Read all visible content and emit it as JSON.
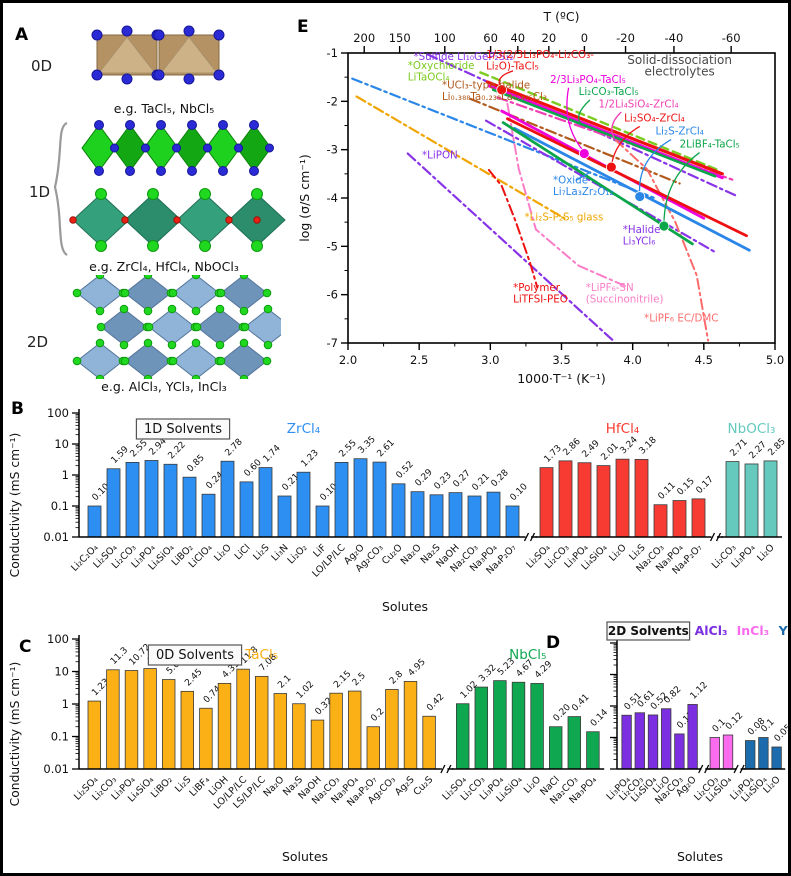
{
  "letters": {
    "a": "A",
    "b": "B",
    "c": "C",
    "d": "D",
    "e": "E"
  },
  "figure": {
    "panel_a": {
      "groups": [
        {
          "dim": "0D",
          "caption": "e.g. TaCl₅, NbCl₅"
        },
        {
          "dim": "1D",
          "caption": "e.g. ZrCl₄, HfCl₄, NbOCl₃"
        },
        {
          "dim": "2D",
          "caption": "e.g. AlCl₃, YCl₃, InCl₃"
        }
      ]
    }
  },
  "chart_data": [
    {
      "type": "line",
      "panel": "E",
      "top_axis_label": "T (ºC)",
      "xlabel": "1000·T⁻¹ (K⁻¹)",
      "ylabel": "log (σ/S cm⁻¹)",
      "xlim": [
        2.0,
        5.0
      ],
      "ylim": [
        -7,
        -1
      ],
      "x_ticks": [
        "2.0",
        "2.5",
        "3.0",
        "3.5",
        "4.0",
        "4.5",
        "5.0"
      ],
      "y_ticks": [
        "-1",
        "-2",
        "-3",
        "-4",
        "-5",
        "-6",
        "-7"
      ],
      "top_ticks": [
        [
          "200",
          2.114
        ],
        [
          "150",
          2.363
        ],
        [
          "100",
          2.68
        ],
        [
          "60",
          3.002
        ],
        [
          "40",
          3.193
        ],
        [
          "20",
          3.411
        ],
        [
          "0",
          3.661
        ],
        [
          "-20",
          3.95
        ],
        [
          "-40",
          4.29
        ],
        [
          "-60",
          4.692
        ]
      ],
      "series": [
        {
          "name": "*Sulfide Li₁₀GeP₂S₁₂",
          "color": "#8833E8",
          "style": "dashdot",
          "width": 2.2,
          "points": [
            [
              2.56,
              -1.03
            ],
            [
              4.74,
              -3.97
            ]
          ]
        },
        {
          "name": "*Oxychloride LiTaOCl₄",
          "color": "#7CCB1F",
          "style": "dash",
          "width": 2.4,
          "points": [
            [
              2.93,
              -1.4
            ],
            [
              4.6,
              -3.42
            ]
          ]
        },
        {
          "name": "*UCl₃-type halide Li₀.₃₈₈Ta₀.₂₃₈La₀.₄₇₅Cl₃",
          "color": "#B15A1C",
          "style": "dashdot",
          "width": 2.2,
          "points": [
            [
              2.86,
              -1.95
            ],
            [
              4.33,
              -3.7
            ]
          ]
        },
        {
          "name": "*Oxide Li₇La₃Zr₂O₁₂",
          "color": "#2A87E8",
          "style": "dashdot",
          "width": 2.2,
          "points": [
            [
              2.03,
              -1.53
            ],
            [
              4.17,
              -4.02
            ]
          ]
        },
        {
          "name": "*Li₂S-P₂S₅ glass",
          "color": "#F0A500",
          "style": "dashdot",
          "width": 2.2,
          "points": [
            [
              2.06,
              -1.9
            ],
            [
              3.52,
              -4.42
            ]
          ]
        },
        {
          "name": "*LiPON",
          "color": "#8833E8",
          "style": "dashdot",
          "width": 2.2,
          "points": [
            [
              2.42,
              -3.08
            ],
            [
              3.87,
              -6.97
            ]
          ]
        },
        {
          "name": "*Halide Li₃YCl₆",
          "color": "#8833E8",
          "style": "dashdot",
          "width": 2.2,
          "points": [
            [
              2.97,
              -2.4
            ],
            [
              4.58,
              -5.12
            ]
          ]
        },
        {
          "name": "*Polymer LiTFSI-PEO",
          "color": "#EE1111",
          "style": "dashdot",
          "width": 2.0,
          "points": [
            [
              2.99,
              -3.42
            ],
            [
              3.08,
              -3.75
            ],
            [
              3.18,
              -4.5
            ],
            [
              3.28,
              -5.35
            ],
            [
              3.33,
              -5.85
            ]
          ]
        },
        {
          "name": "*LiPF₆-SN (Succinonitrile)",
          "color": "#FB7DC8",
          "style": "dashdot",
          "width": 2.0,
          "points": [
            [
              3.12,
              -2.05
            ],
            [
              3.2,
              -3.4
            ],
            [
              3.32,
              -4.65
            ],
            [
              3.62,
              -5.4
            ],
            [
              3.97,
              -5.85
            ]
          ]
        },
        {
          "name": "*LiPF₆ EC/DMC",
          "color": "#FC6B6B",
          "style": "dashdot",
          "width": 2.0,
          "points": [
            [
              3.88,
              -2.8
            ],
            [
              4.1,
              -3.4
            ],
            [
              4.3,
              -4.5
            ],
            [
              4.45,
              -5.6
            ],
            [
              4.53,
              -6.95
            ]
          ]
        },
        {
          "name": "1/2Li₄SiO₄-ZrCl₄",
          "color": "#F03FB4",
          "style": "dashdot",
          "width": 2.2,
          "points": [
            [
              3.05,
              -1.92
            ],
            [
              4.7,
              -3.62
            ]
          ]
        },
        {
          "name": "1/3(2/3Li₃PO₄-Li₂CO₃-Li₂O)-TaCl₅",
          "color": "#EE1111",
          "style": "solid",
          "width": 3.2,
          "points": [
            [
              2.98,
              -1.6
            ],
            [
              4.63,
              -3.5
            ]
          ],
          "marker": [
            3.08,
            -1.76
          ]
        },
        {
          "name": "top-magenta-solid",
          "color": "#EE00DD",
          "style": "solid",
          "width": 3.0,
          "points": [
            [
              2.99,
              -1.68
            ],
            [
              4.63,
              -3.58
            ]
          ]
        },
        {
          "name": "Li₂CO₃-TaCl₅",
          "color": "#0CA64A",
          "style": "solid",
          "width": 2.6,
          "points": [
            [
              3.02,
              -1.76
            ],
            [
              4.58,
              -3.55
            ]
          ]
        },
        {
          "name": "2/3Li₃PO₄-TaCl₅",
          "color": "#EE00DD",
          "style": "solid",
          "width": 2.8,
          "points": [
            [
              3.08,
              -2.2
            ],
            [
              4.5,
              -4.42
            ]
          ],
          "marker": [
            3.66,
            -3.08
          ]
        },
        {
          "name": "Li₂SO₄-ZrCl₄",
          "color": "#EE1111",
          "style": "solid",
          "width": 2.8,
          "points": [
            [
              3.12,
              -2.36
            ],
            [
              4.8,
              -4.78
            ]
          ],
          "marker": [
            3.85,
            -3.36
          ]
        },
        {
          "name": "Li₂S-ZrCl₄",
          "color": "#2A87E8",
          "style": "solid",
          "width": 2.8,
          "points": [
            [
              3.17,
              -2.56
            ],
            [
              4.82,
              -5.08
            ]
          ],
          "marker": [
            4.05,
            -3.97
          ]
        },
        {
          "name": "2LiBF₄-TaCl₅",
          "color": "#0CA64A",
          "style": "solid",
          "width": 2.8,
          "points": [
            [
              3.09,
              -2.44
            ],
            [
              4.42,
              -4.95
            ]
          ],
          "marker": [
            4.22,
            -4.58
          ]
        }
      ],
      "connectors": [
        {
          "from": [
            3.16,
            -1.37
          ],
          "ctrl": [
            3.02,
            -1.5
          ],
          "to": [
            3.08,
            -1.73
          ],
          "color": "#EE1111"
        },
        {
          "from": [
            3.55,
            -1.72
          ],
          "ctrl": [
            3.5,
            -2.5
          ],
          "to": [
            3.66,
            -3.05
          ],
          "color": "#EE00DD"
        },
        {
          "from": [
            3.7,
            -1.97
          ],
          "ctrl": [
            3.58,
            -2.3
          ],
          "to": [
            3.64,
            -2.47
          ],
          "color": "#0CA64A"
        },
        {
          "from": [
            3.92,
            -2.22
          ],
          "ctrl": [
            3.82,
            -2.5
          ],
          "to": [
            3.87,
            -2.76
          ],
          "color": "#F03FB4"
        },
        {
          "from": [
            4.05,
            -2.52
          ],
          "ctrl": [
            3.88,
            -2.8
          ],
          "to": [
            3.85,
            -3.33
          ],
          "color": "#EE1111"
        },
        {
          "from": [
            4.27,
            -2.79
          ],
          "ctrl": [
            4.03,
            -3.2
          ],
          "to": [
            4.05,
            -3.94
          ],
          "color": "#2A87E8"
        },
        {
          "from": [
            4.47,
            -3.06
          ],
          "ctrl": [
            4.22,
            -3.6
          ],
          "to": [
            4.22,
            -4.55
          ],
          "color": "#0CA64A"
        },
        {
          "from": [
            3.6,
            -3.64
          ],
          "ctrl": [
            3.65,
            -3.55
          ],
          "to": [
            3.7,
            -3.47
          ],
          "color": "#2A87E8"
        }
      ],
      "labels": [
        {
          "text": "*Sulfide Li₁₀GeP₂S₁₂",
          "x": 2.46,
          "y": -1.14,
          "color": "#8833E8"
        },
        {
          "text": "*Oxychloride\nLiTaOCl₄",
          "x": 2.42,
          "y": -1.33,
          "color": "#7CCB1F"
        },
        {
          "text": "*UCl₃-type halide\nLi₀.₃₈₈Ta₀.₂₃₈La₀.₄₇₅Cl₃",
          "x": 2.66,
          "y": -1.73,
          "color": "#B15A1C"
        },
        {
          "text": "1/3(2/3Li₃PO₄-Li₂CO₃-\nLi₂O)-TaCl₅",
          "x": 2.97,
          "y": -1.1,
          "color": "#EE1111"
        },
        {
          "text": "2/3Li₃PO₄-TaCl₅",
          "x": 3.42,
          "y": -1.62,
          "color": "#EE00DD"
        },
        {
          "text": "Li₂CO₃-TaCl₅",
          "x": 3.62,
          "y": -1.87,
          "color": "#0CA64A"
        },
        {
          "text": "1/2Li₄SiO₄-ZrCl₄",
          "x": 3.76,
          "y": -2.13,
          "color": "#F03FB4"
        },
        {
          "text": "Li₂SO₄-ZrCl₄",
          "x": 3.94,
          "y": -2.42,
          "color": "#EE1111"
        },
        {
          "text": "Li₂S-ZrCl₄",
          "x": 4.16,
          "y": -2.69,
          "color": "#2A87E8"
        },
        {
          "text": "2LiBF₄-TaCl₅",
          "x": 4.33,
          "y": -2.96,
          "color": "#0CA64A"
        },
        {
          "text": "Solid-dissociation\nelectrolytes",
          "x": 4.33,
          "y": -1.23,
          "color": "#4A4A4A",
          "anchor": "middle",
          "size": 12
        },
        {
          "text": "*LiPON",
          "x": 2.52,
          "y": -3.18,
          "color": "#8833E8"
        },
        {
          "text": "*Oxide\nLi₇La₃Zr₂O₁₂",
          "x": 3.44,
          "y": -3.7,
          "color": "#2A87E8"
        },
        {
          "text": "*Li₂S-P₂S₅ glass",
          "x": 3.24,
          "y": -4.47,
          "color": "#F0A500"
        },
        {
          "text": "*Halide\nLi₃YCl₆",
          "x": 3.93,
          "y": -4.72,
          "color": "#8833E8"
        },
        {
          "text": "*Polymer\nLiTFSI-PEO",
          "x": 3.16,
          "y": -5.92,
          "color": "#EE1111"
        },
        {
          "text": "*LiPF₆-SN\n(Succinonitrile)",
          "x": 3.67,
          "y": -5.92,
          "color": "#FB7DC8"
        },
        {
          "text": "*LiPF₆ EC/DMC",
          "x": 4.08,
          "y": -6.55,
          "color": "#FC6B6B"
        }
      ]
    },
    {
      "type": "bar",
      "panel": "B",
      "box_label": "1D Solvents",
      "ylabel": "Conductivity (mS cm⁻¹)",
      "xlabel": "Solutes",
      "y_ticks": [
        "100",
        "10",
        "1",
        "0.1",
        "0.01"
      ],
      "ylim": [
        0.01,
        100
      ],
      "groups": [
        {
          "solvent": "ZrCl₄",
          "color": "#2E8FF2",
          "categories": [
            "Li₂C₂O₄",
            "Li₂SO₄",
            "Li₂CO₃",
            "Li₃PO₄",
            "Li₄SiO₄",
            "LiBO₂",
            "LiClO₄",
            "Li₂O",
            "LiCl",
            "Li₂S",
            "Li₃N",
            "Li₂O₂",
            "LiF",
            "LO/LP/LC",
            "Ag₂O",
            "Ag₂CO₃",
            "Cu₂O",
            "Na₂O",
            "Na₂S",
            "NaOH",
            "Na₂CO₃",
            "Na₃PO₄",
            "Na₄P₂O₇"
          ],
          "values": [
            "0.10",
            "1.59",
            "2.55",
            "2.94",
            "2.22",
            "0.85",
            "0.24",
            "2.78",
            "0.60",
            "1.74",
            "0.21",
            "1.23",
            "0.10",
            "2.55",
            "3.35",
            "2.61",
            "0.52",
            "0.29",
            "0.23",
            "0.27",
            "0.21",
            "0.28",
            "0.10"
          ]
        },
        {
          "solvent": "HfCl₄",
          "color": "#F83B32",
          "categories": [
            "Li₂SO₄",
            "Li₂CO₃",
            "Li₃PO₄",
            "Li₄SiO₄",
            "Li₂O",
            "Li₂S",
            "Na₂CO₃",
            "Na₃PO₄",
            "Na₄P₂O₇"
          ],
          "values": [
            "1.73",
            "2.86",
            "2.49",
            "2.01",
            "3.24",
            "3.18",
            "0.11",
            "0.15",
            "0.17"
          ]
        },
        {
          "solvent": "NbOCl₃",
          "color": "#66C9BE",
          "categories": [
            "Li₂CO₃",
            "Li₃PO₄",
            "Li₂O"
          ],
          "values": [
            "2.71",
            "2.27",
            "2.85"
          ]
        }
      ]
    },
    {
      "type": "bar",
      "panel": "C",
      "box_label": "0D Solvents",
      "ylabel": "Conductivity (mS cm⁻¹)",
      "xlabel": "Solutes",
      "y_ticks": [
        "100",
        "10",
        "1",
        "0.1",
        "0.01"
      ],
      "ylim": [
        0.01,
        100
      ],
      "groups": [
        {
          "solvent": "TaCl₅",
          "color": "#FBB116",
          "categories": [
            "Li₂SO₄",
            "Li₂CO₃",
            "Li₃PO₄",
            "Li₄SiO₄",
            "LiBO₂",
            "Li₂S",
            "LiBF₄",
            "LiOH",
            "LO/LP/LC",
            "LS/LP/LC",
            "Na₂O",
            "Na₂S",
            "NaOH",
            "Na₂CO₃",
            "Na₃PO₄",
            "Na₄P₂O₇",
            "Ag₂CO₃",
            "Ag₂S",
            "Cu₂S"
          ],
          "values": [
            "1.23",
            "11.3",
            "10.72",
            "12.3",
            "5.66",
            "2.45",
            "0.74",
            "4.31",
            "11.8",
            "7.08",
            "2.1",
            "1.02",
            "0.32",
            "2.15",
            "2.5",
            "0.2",
            "2.8",
            "4.95",
            "0.42"
          ]
        },
        {
          "solvent": "NbCl₅",
          "color": "#0FA850",
          "categories": [
            "Li₂SO₄",
            "Li₂CO₃",
            "Li₃PO₄",
            "Li₄SiO₄",
            "Li₂O",
            "NaCl",
            "Na₂CO₃",
            "Na₃PO₄"
          ],
          "values": [
            "1.02",
            "3.32",
            "5.23",
            "4.67",
            "4.29",
            "0.20",
            "0.41",
            "0.14"
          ]
        }
      ]
    },
    {
      "type": "bar",
      "panel": "D",
      "box_label": "2D Solvents",
      "xlabel": "Solutes",
      "y_ticks": [
        "100",
        "10",
        "1",
        "0.1",
        "0.01"
      ],
      "ylim": [
        0.01,
        100
      ],
      "groups": [
        {
          "solvent": "AlCl₃",
          "color": "#7B2FE0",
          "categories": [
            "Li₃PO₄",
            "Li₂CO₃",
            "Li₄SiO₄",
            "Li₂O",
            "Na₂CO₃",
            "Ag₂O"
          ],
          "values": [
            "0.51",
            "0.61",
            "0.52",
            "0.82",
            "0.13",
            "1.12"
          ]
        },
        {
          "solvent": "InCl₃",
          "color": "#FA6BEE",
          "categories": [
            "Li₂CO₃",
            "Li₄SiO₄"
          ],
          "values": [
            "0.1",
            "0.12"
          ]
        },
        {
          "solvent": "YCl₃",
          "color": "#1C6CAD",
          "categories": [
            "Li₃PO₄",
            "Li₄SiO₄",
            "Li₂O"
          ],
          "values": [
            "0.08",
            "0.1",
            "0.05"
          ]
        }
      ]
    }
  ]
}
